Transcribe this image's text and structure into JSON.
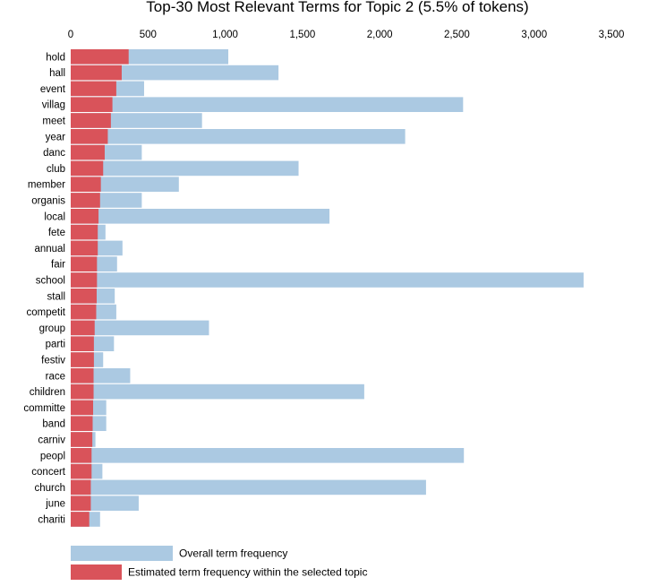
{
  "chart_data": {
    "type": "bar",
    "orientation": "horizontal",
    "title": "Top-30 Most Relevant Terms for Topic 2 (5.5% of tokens)",
    "xlabel": "",
    "ylabel": "",
    "xlim": [
      0,
      3500
    ],
    "x_ticks": [
      0,
      500,
      1000,
      1500,
      2000,
      2500,
      3000,
      3500
    ],
    "x_tick_labels": [
      "0",
      "500",
      "1,000",
      "1,500",
      "2,000",
      "2,500",
      "3,000",
      "3,500"
    ],
    "x_axis_position": "top",
    "grid": false,
    "legend_position": "bottom-left",
    "categories": [
      "hold",
      "hall",
      "event",
      "villag",
      "meet",
      "year",
      "danc",
      "club",
      "member",
      "organis",
      "local",
      "fete",
      "annual",
      "fair",
      "school",
      "stall",
      "competit",
      "group",
      "parti",
      "festiv",
      "race",
      "children",
      "committe",
      "band",
      "carniv",
      "peopl",
      "concert",
      "church",
      "june",
      "chariti"
    ],
    "series": [
      {
        "name": "Overall term frequency",
        "color": "#abc9e2",
        "values": [
          1020,
          1345,
          475,
          2540,
          850,
          2165,
          460,
          1475,
          700,
          460,
          1675,
          225,
          335,
          300,
          3320,
          285,
          295,
          895,
          280,
          210,
          385,
          1900,
          230,
          230,
          160,
          2545,
          205,
          2300,
          440,
          190
        ]
      },
      {
        "name": "Estimated term frequency within the selected topic",
        "color": "#d9535a",
        "values": [
          375,
          330,
          295,
          270,
          260,
          240,
          220,
          210,
          195,
          190,
          180,
          175,
          175,
          170,
          170,
          168,
          165,
          155,
          150,
          150,
          148,
          148,
          145,
          142,
          140,
          135,
          135,
          130,
          130,
          120
        ]
      }
    ]
  }
}
